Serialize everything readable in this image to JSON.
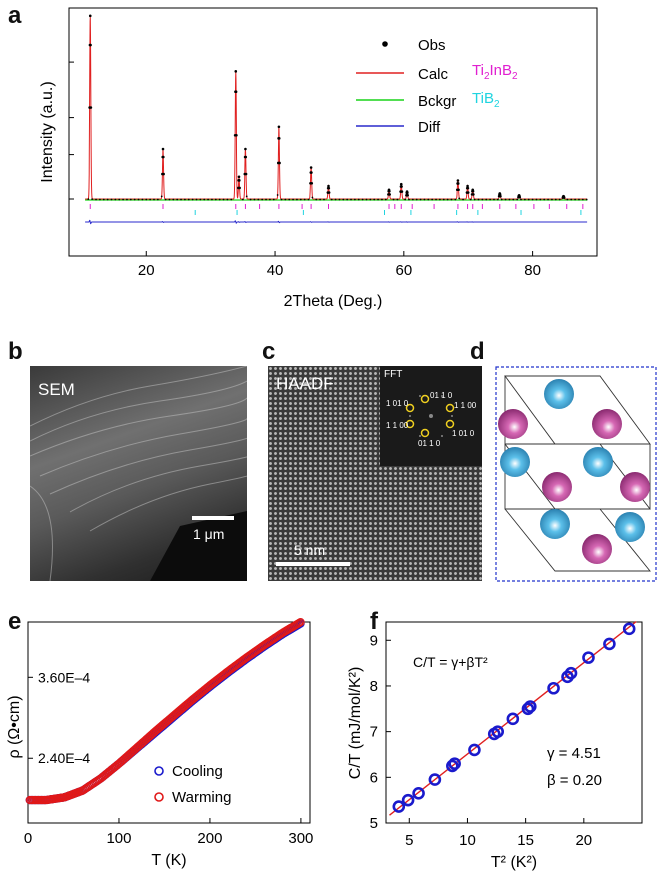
{
  "panels": {
    "a": "a",
    "b": "b",
    "c": "c",
    "d": "d",
    "e": "e",
    "f": "f"
  },
  "colors": {
    "obs": "#000000",
    "calc": "#e02020",
    "bckgr": "#19d419",
    "diff": "#2a2acc",
    "phase1": "#e020d0",
    "phase2": "#20d4e0",
    "atom_pink": "#c0489a",
    "atom_blue": "#3aa6d6",
    "frame_blue": "#2233cc",
    "fit_line": "#e02020",
    "cool": "#1a1acc",
    "warm": "#e01818"
  },
  "chart_data": [
    {
      "id": "xrd",
      "type": "line",
      "title": "",
      "xlabel": "2Theta (Deg.)",
      "ylabel": "Intensity (a.u.)",
      "xlim": [
        8,
        90
      ],
      "xticks": [
        20,
        40,
        60,
        80
      ],
      "xtick_labels": [
        "20",
        "40",
        "60",
        "80"
      ],
      "baseline": 0.06,
      "legend": {
        "position": "top-right",
        "entries": [
          {
            "name": "Obs",
            "style": "dot"
          },
          {
            "name": "Calc",
            "style": "line",
            "phase_html": "Ti<sub>2</sub>InB<sub>2</sub>"
          },
          {
            "name": "Bckgr",
            "style": "line",
            "phase_html": "TiB<sub>2</sub>"
          },
          {
            "name": "Diff",
            "style": "line"
          }
        ],
        "phase_labels": [
          "Ti2InB2",
          "TiB2"
        ]
      },
      "peaks": [
        {
          "x": 11.3,
          "h": 0.99
        },
        {
          "x": 22.6,
          "h": 0.27
        },
        {
          "x": 33.9,
          "h": 0.69
        },
        {
          "x": 34.4,
          "h": 0.12
        },
        {
          "x": 35.4,
          "h": 0.27
        },
        {
          "x": 40.6,
          "h": 0.39
        },
        {
          "x": 45.6,
          "h": 0.17
        },
        {
          "x": 48.3,
          "h": 0.07
        },
        {
          "x": 57.7,
          "h": 0.05
        },
        {
          "x": 59.6,
          "h": 0.08
        },
        {
          "x": 60.5,
          "h": 0.04
        },
        {
          "x": 68.4,
          "h": 0.1
        },
        {
          "x": 69.9,
          "h": 0.07
        },
        {
          "x": 70.7,
          "h": 0.05
        },
        {
          "x": 74.9,
          "h": 0.03
        },
        {
          "x": 77.9,
          "h": 0.02
        },
        {
          "x": 84.8,
          "h": 0.015
        }
      ],
      "ticks_phase1": [
        11.3,
        22.6,
        33.9,
        35.4,
        37.6,
        40.6,
        44.2,
        45.6,
        48.3,
        57.7,
        58.6,
        59.6,
        61.3,
        64.7,
        68.4,
        69.9,
        70.7,
        72.2,
        74.9,
        77.4,
        80.2,
        82.6,
        85.3,
        87.8
      ],
      "ticks_phase2": [
        27.6,
        34.1,
        44.4,
        57.0,
        61.1,
        68.2,
        71.5,
        78.2,
        87.5
      ]
    },
    {
      "id": "resistivity",
      "type": "scatter",
      "xlabel": "T (K)",
      "ylabel": "ρ (Ω•cm)",
      "xlim": [
        0,
        310
      ],
      "ylim": [
        0.000144,
        0.000442
      ],
      "xticks": [
        0,
        100,
        200,
        300
      ],
      "xtick_labels": [
        "0",
        "100",
        "200",
        "300"
      ],
      "yticks": [
        0.00024,
        0.00036
      ],
      "ytick_labels": [
        "2.40E–4",
        "3.60E–4"
      ],
      "legend": {
        "position": "bottom-right",
        "entries": [
          "Cooling",
          "Warming"
        ]
      },
      "series": [
        {
          "name": "Cooling",
          "x": [
            2,
            20,
            40,
            60,
            80,
            100,
            120,
            140,
            160,
            180,
            200,
            220,
            240,
            260,
            280,
            300
          ],
          "y": [
            0.000178,
            0.000178,
            0.000182,
            0.000192,
            0.00021,
            0.000232,
            0.000255,
            0.000278,
            0.000301,
            0.000324,
            0.000346,
            0.000367,
            0.000387,
            0.000406,
            0.000424,
            0.00044
          ]
        },
        {
          "name": "Warming",
          "x": [
            2,
            20,
            40,
            60,
            80,
            100,
            120,
            140,
            160,
            180,
            200,
            220,
            240,
            260,
            280,
            300
          ],
          "y": [
            0.000178,
            0.000178,
            0.000182,
            0.000192,
            0.00021,
            0.000232,
            0.000256,
            0.00028,
            0.000303,
            0.000326,
            0.000348,
            0.000369,
            0.000389,
            0.000408,
            0.000426,
            0.000442
          ]
        }
      ]
    },
    {
      "id": "specific-heat",
      "type": "scatter",
      "xlabel": "T² (K²)",
      "ylabel": "C/T (mJ/mol/K²)",
      "xlim": [
        3,
        25
      ],
      "ylim": [
        5,
        9.4
      ],
      "xticks": [
        5,
        10,
        15,
        20
      ],
      "xtick_labels": [
        "5",
        "10",
        "15",
        "20"
      ],
      "yticks": [
        5,
        6,
        7,
        8,
        9
      ],
      "ytick_labels": [
        "5",
        "6",
        "7",
        "8",
        "9"
      ],
      "annotations": {
        "formula": "C/T = γ+βT²",
        "gamma": "γ = 4.51",
        "beta": "β = 0.20"
      },
      "fit": {
        "gamma": 4.51,
        "beta": 0.2,
        "x_range": [
          3.3,
          24.5
        ]
      },
      "series": [
        {
          "name": "data",
          "x": [
            4.1,
            4.9,
            5.8,
            7.2,
            8.7,
            8.9,
            10.6,
            12.3,
            12.6,
            13.9,
            15.2,
            15.4,
            17.4,
            18.6,
            18.9,
            20.4,
            22.2,
            23.9
          ],
          "y": [
            5.36,
            5.5,
            5.65,
            5.95,
            6.25,
            6.3,
            6.6,
            6.95,
            7.0,
            7.28,
            7.5,
            7.55,
            7.95,
            8.2,
            8.28,
            8.62,
            8.92,
            9.25
          ]
        }
      ]
    }
  ],
  "images": {
    "sem": {
      "label": "SEM",
      "scale": "1 μm"
    },
    "haadf": {
      "label": "HAADF",
      "scale": "5 nm",
      "fft": "FFT",
      "indices": [
        "01 1 0",
        "1 01 0",
        "1 1 00",
        "1 1 00",
        "1 01 0",
        "01 1 0"
      ]
    }
  },
  "legend_e": {
    "cooling": "Cooling",
    "warming": "Warming"
  }
}
